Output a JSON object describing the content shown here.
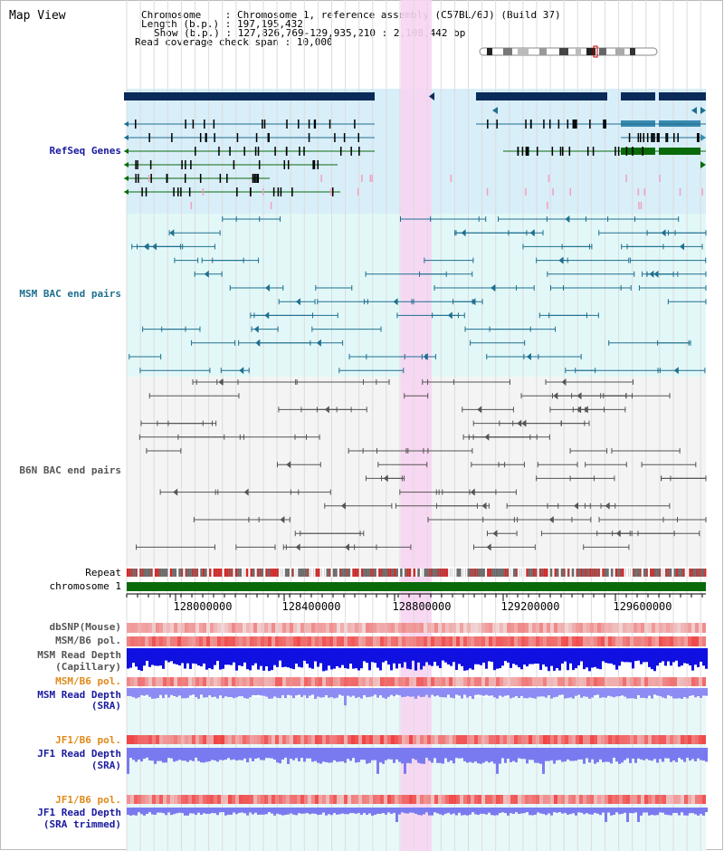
{
  "view_title": "Map View",
  "header": {
    "chromosome_label": "Chromosome",
    "chromosome_value": "Chromosome 1, reference assembly (C57BL/6J) (Build 37)",
    "length_label": "Length (b.p.)",
    "length_value": "197,195,432",
    "show_label": "Show (b.p.)",
    "show_value": "127,826,769-129,935,210 : 2,108,442 bp",
    "span_label": "Read coverage check span",
    "span_value": "10,000"
  },
  "tracks": {
    "refseq": "RefSeq Genes",
    "msm_bac": "MSM BAC end pairs",
    "b6n_bac": "B6N BAC end pairs",
    "repeat": "Repeat",
    "chromosome": "chromosome 1",
    "dbsnp": "dbSNP(Mouse)",
    "msm_b6_pol_1": "MSM/B6 pol.",
    "msm_read_depth_cap_1": "MSM Read Depth",
    "msm_read_depth_cap_2": "(Capillary)",
    "msm_b6_pol_2": "MSM/B6 pol.",
    "msm_read_depth_sra_1": "MSM Read Depth",
    "msm_read_depth_sra_2": "(SRA)",
    "jf1_b6_pol_1": "JF1/B6 pol.",
    "jf1_read_depth_sra_1": "JF1 Read Depth",
    "jf1_read_depth_sra_2": "(SRA)",
    "jf1_b6_pol_2": "JF1/B6 pol.",
    "jf1_read_depth_trim_1": "JF1 Read Depth",
    "jf1_read_depth_trim_2": "(SRA trimmed)"
  },
  "axis_ticks": [
    "128000000",
    "128400000",
    "128800000",
    "129200000",
    "129600000"
  ],
  "colors": {
    "refseq_bg": "#d8eef9",
    "msm_bg": "#e2f8f8",
    "b6n_bg": "#f4f4f4",
    "highlight": "#f8d8f4",
    "gene_dark": "#0a2a5a",
    "gene_green": "#0a6a0a",
    "bac_teal": "#1f6f8f",
    "bac_gray": "#555555",
    "label_blue": "#1a1aa0",
    "label_teal": "#1f6f8f",
    "label_orange": "#e08a1a",
    "snp_red": "#e83030",
    "depth_blue": "#1010e0"
  }
}
